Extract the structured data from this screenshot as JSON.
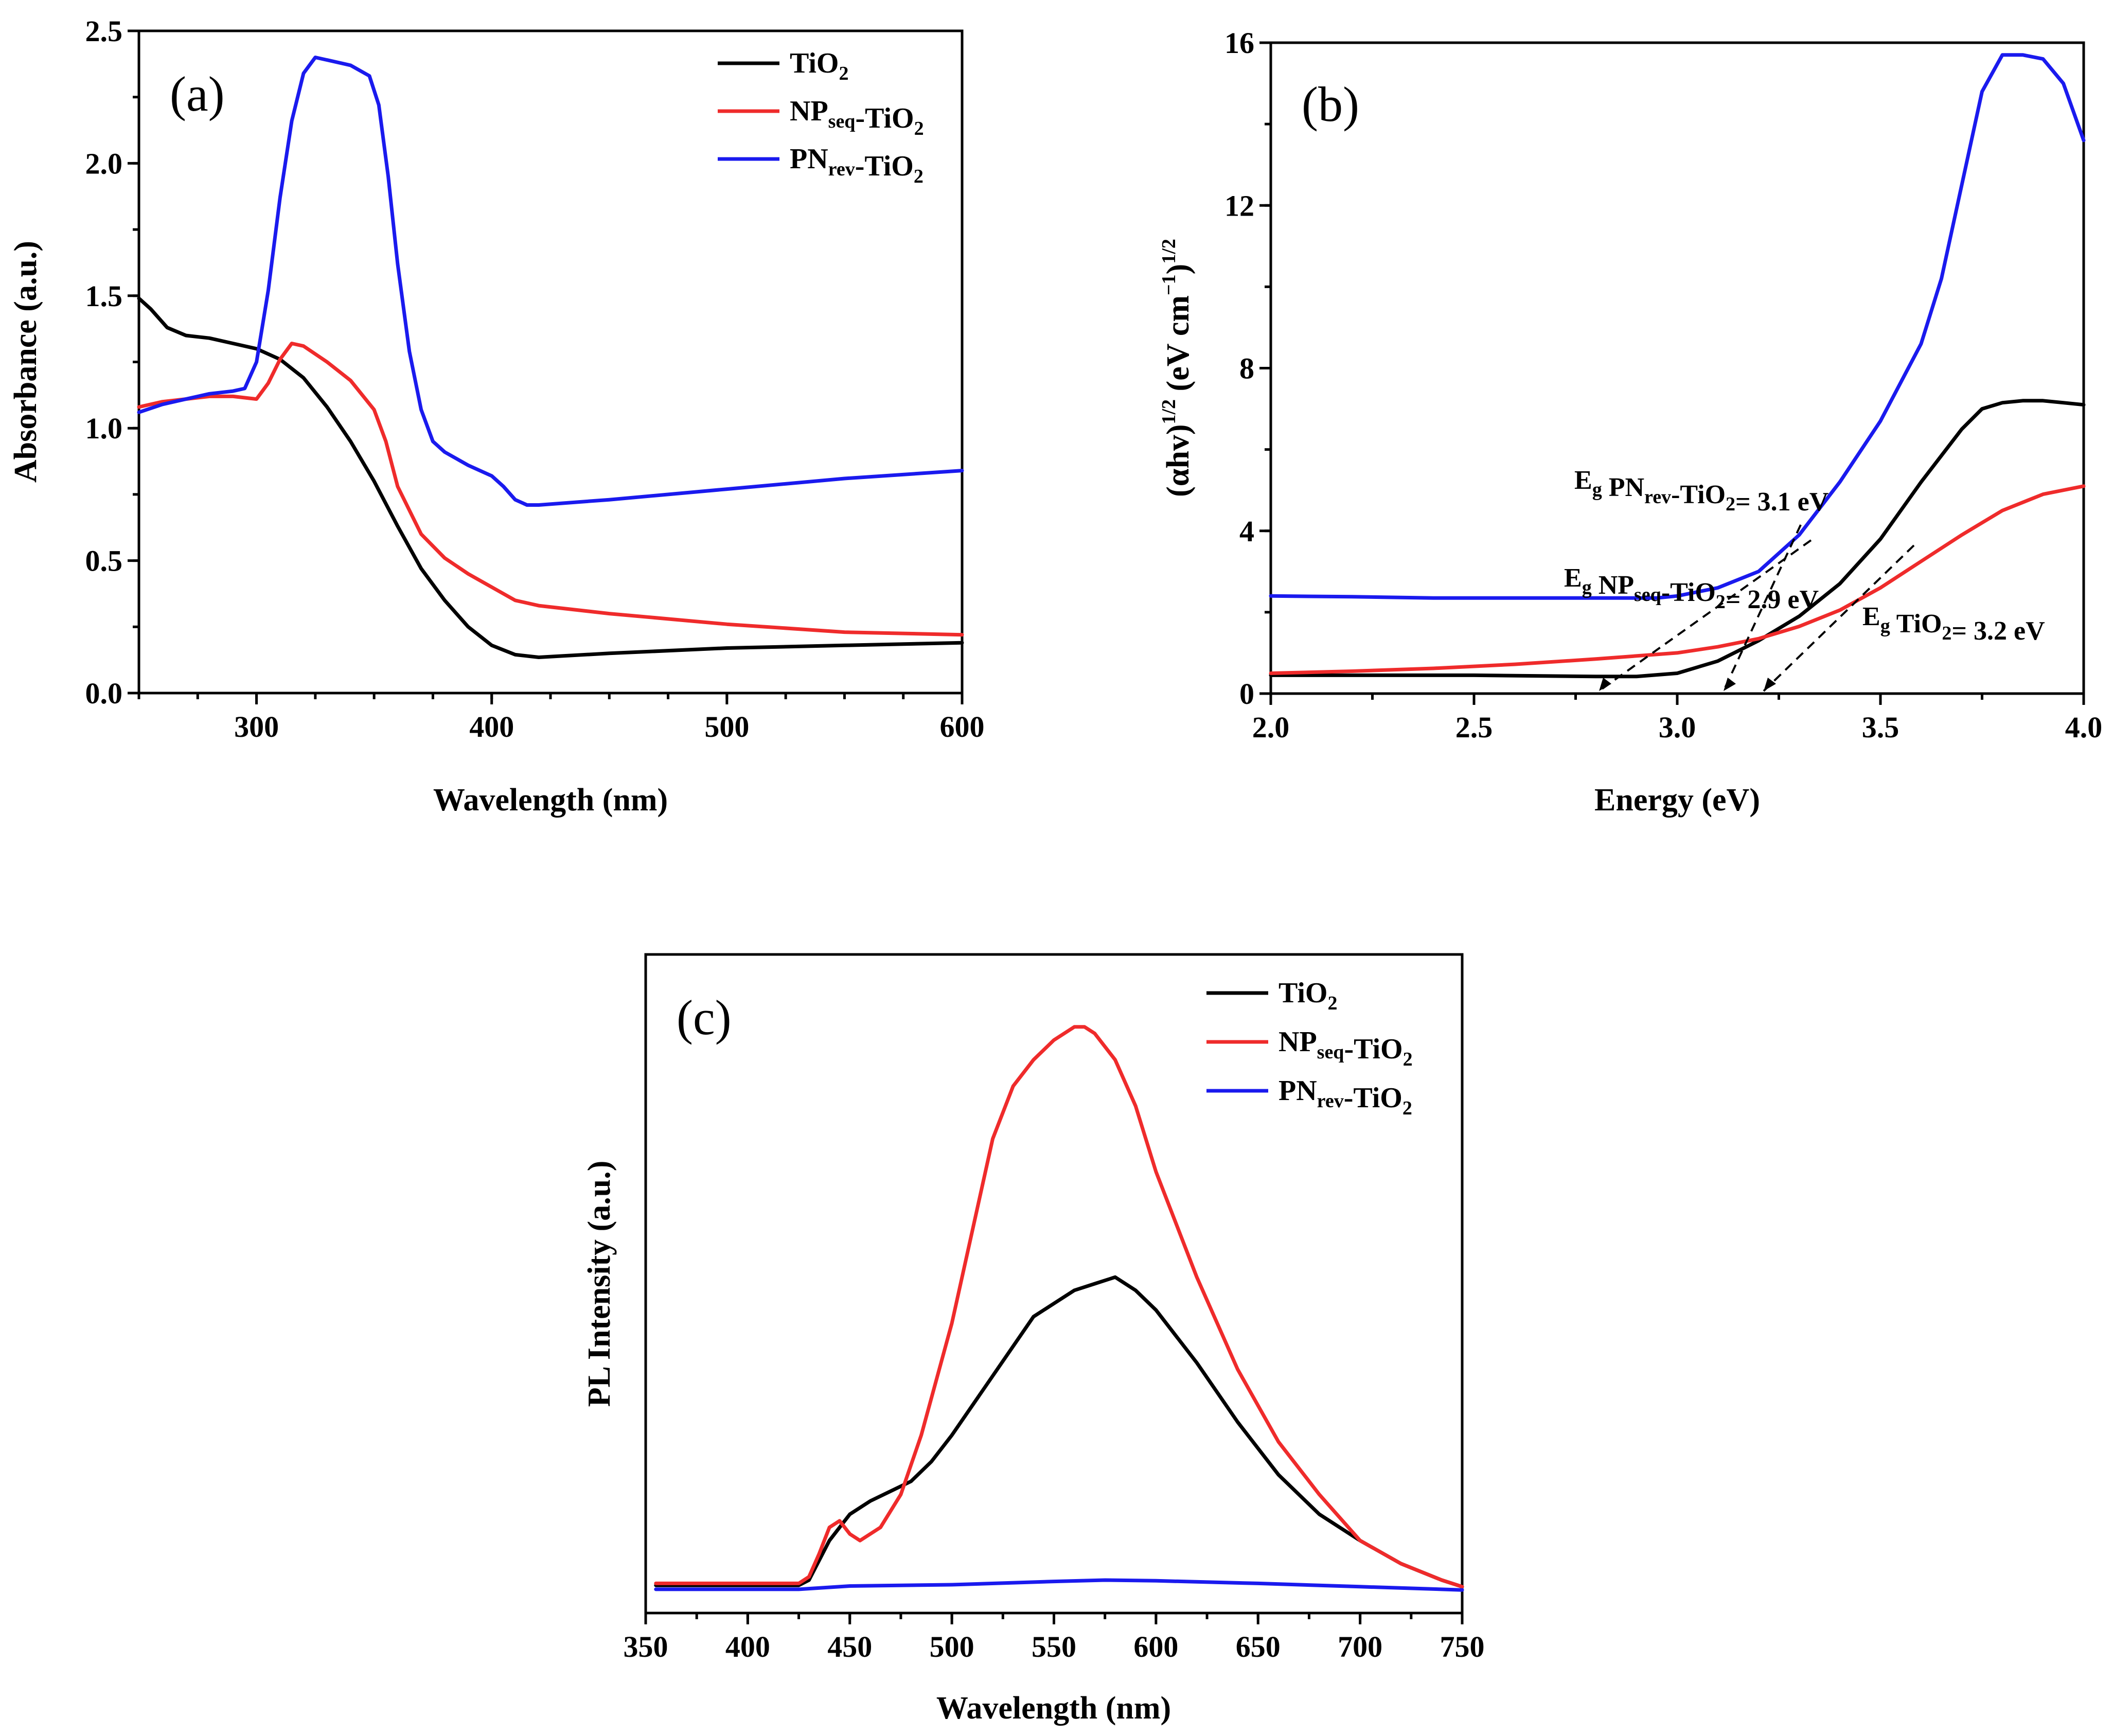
{
  "colors": {
    "black": "#000000",
    "red": "#ef2b2b",
    "blue": "#1a1aee"
  },
  "chart_data": [
    {
      "id": "a",
      "type": "line",
      "panel_label": "(a)",
      "xlabel": "Wavelength (nm)",
      "ylabel": "Absorbance (a.u.)",
      "xlim": [
        250,
        600
      ],
      "ylim": [
        0,
        2.5
      ],
      "xticks": [
        300,
        400,
        500,
        600
      ],
      "yticks": [
        0.0,
        0.5,
        1.0,
        1.5,
        2.0,
        2.5
      ],
      "xtick_labels": [
        "300",
        "400",
        "500",
        "600"
      ],
      "ytick_labels": [
        "0.0",
        "0.5",
        "1.0",
        "1.5",
        "2.0",
        "2.5"
      ],
      "legend_position": "top-right",
      "series": [
        {
          "name": "TiO2",
          "label_main": "TiO",
          "label_sub": "2",
          "label_tail": "",
          "color": "#000000",
          "x": [
            250,
            255,
            262,
            270,
            280,
            290,
            300,
            310,
            320,
            330,
            340,
            350,
            360,
            370,
            380,
            390,
            400,
            410,
            420,
            430,
            450,
            500,
            550,
            600
          ],
          "y": [
            1.49,
            1.45,
            1.38,
            1.35,
            1.34,
            1.32,
            1.3,
            1.26,
            1.19,
            1.08,
            0.95,
            0.8,
            0.63,
            0.47,
            0.35,
            0.25,
            0.18,
            0.145,
            0.135,
            0.14,
            0.15,
            0.17,
            0.18,
            0.19
          ]
        },
        {
          "name": "NPseq-TiO2",
          "label_main": "NP",
          "label_sub": "seq",
          "label_tail": "-TiO",
          "label_sub2": "2",
          "color": "#ef2b2b",
          "x": [
            250,
            260,
            270,
            280,
            290,
            300,
            305,
            310,
            315,
            320,
            330,
            340,
            350,
            355,
            360,
            370,
            380,
            390,
            400,
            410,
            420,
            450,
            500,
            550,
            600
          ],
          "y": [
            1.08,
            1.1,
            1.11,
            1.12,
            1.12,
            1.11,
            1.17,
            1.26,
            1.32,
            1.31,
            1.25,
            1.18,
            1.07,
            0.95,
            0.78,
            0.6,
            0.51,
            0.45,
            0.4,
            0.35,
            0.33,
            0.3,
            0.26,
            0.23,
            0.22
          ]
        },
        {
          "name": "PNrev-TiO2",
          "label_main": "PN",
          "label_sub": "rev",
          "label_tail": "-TiO",
          "label_sub2": "2",
          "color": "#1a1aee",
          "x": [
            250,
            260,
            270,
            280,
            290,
            295,
            300,
            305,
            310,
            315,
            320,
            325,
            330,
            340,
            348,
            352,
            356,
            360,
            365,
            370,
            375,
            380,
            390,
            400,
            405,
            410,
            415,
            420,
            450,
            500,
            550,
            600
          ],
          "y": [
            1.06,
            1.09,
            1.11,
            1.13,
            1.14,
            1.15,
            1.25,
            1.52,
            1.87,
            2.16,
            2.34,
            2.4,
            2.39,
            2.37,
            2.33,
            2.22,
            1.95,
            1.62,
            1.29,
            1.07,
            0.95,
            0.91,
            0.86,
            0.82,
            0.78,
            0.73,
            0.71,
            0.71,
            0.73,
            0.77,
            0.81,
            0.84
          ]
        }
      ]
    },
    {
      "id": "b",
      "type": "line",
      "panel_label": "(b)",
      "xlabel": "Energy (eV)",
      "ylabel": "(αhv)1/2 (eV cm−1)1/2",
      "xlim": [
        2.0,
        4.0
      ],
      "ylim": [
        0,
        16
      ],
      "xticks": [
        2.0,
        2.5,
        3.0,
        3.5,
        4.0
      ],
      "yticks": [
        0,
        4,
        8,
        12,
        16
      ],
      "xtick_labels": [
        "2.0",
        "2.5",
        "3.0",
        "3.5",
        "4.0"
      ],
      "ytick_labels": [
        "0",
        "4",
        "8",
        "12",
        "16"
      ],
      "annotations": [
        {
          "text": "Eg PNrev-TiO2= 3.1 eV",
          "p1": "E",
          "s1": "g",
          "p2": " PN",
          "s2": "rev",
          "p3": "-TiO",
          "s3": "2",
          "p4": "= 3.1 eV"
        },
        {
          "text": "Eg NPseq-TiO2= 2.9 eV",
          "p1": "E",
          "s1": "g",
          "p2": " NP",
          "s2": "seq",
          "p3": "-TiO",
          "s3": "2",
          "p4": "= 2.9 eV"
        },
        {
          "text": "Eg TiO2= 3.2 eV",
          "p1": "E",
          "s1": "g",
          "p2": " TiO",
          "s2": "2",
          "p4": "= 3.2 eV"
        }
      ],
      "series": [
        {
          "name": "TiO2",
          "color": "#000000",
          "x": [
            2.0,
            2.2,
            2.5,
            2.8,
            2.9,
            3.0,
            3.1,
            3.2,
            3.3,
            3.4,
            3.5,
            3.6,
            3.7,
            3.75,
            3.8,
            3.85,
            3.9,
            3.95,
            4.0
          ],
          "y": [
            0.45,
            0.45,
            0.45,
            0.42,
            0.42,
            0.5,
            0.8,
            1.3,
            1.9,
            2.7,
            3.8,
            5.2,
            6.5,
            7.0,
            7.15,
            7.2,
            7.2,
            7.15,
            7.1
          ]
        },
        {
          "name": "NPseq-TiO2",
          "color": "#ef2b2b",
          "x": [
            2.0,
            2.2,
            2.4,
            2.6,
            2.8,
            3.0,
            3.1,
            3.2,
            3.3,
            3.4,
            3.5,
            3.6,
            3.7,
            3.8,
            3.9,
            4.0
          ],
          "y": [
            0.5,
            0.55,
            0.62,
            0.72,
            0.85,
            1.0,
            1.15,
            1.35,
            1.65,
            2.05,
            2.6,
            3.25,
            3.9,
            4.5,
            4.9,
            5.1
          ]
        },
        {
          "name": "PNrev-TiO2",
          "color": "#1a1aee",
          "x": [
            2.0,
            2.2,
            2.4,
            2.6,
            2.8,
            2.95,
            3.0,
            3.1,
            3.2,
            3.3,
            3.4,
            3.5,
            3.6,
            3.65,
            3.7,
            3.75,
            3.8,
            3.85,
            3.9,
            3.95,
            4.0
          ],
          "y": [
            2.4,
            2.38,
            2.35,
            2.35,
            2.35,
            2.35,
            2.4,
            2.6,
            3.0,
            3.9,
            5.2,
            6.7,
            8.6,
            10.2,
            12.5,
            14.8,
            15.7,
            15.7,
            15.6,
            15.0,
            13.6
          ]
        }
      ]
    },
    {
      "id": "c",
      "type": "line",
      "panel_label": "(c)",
      "xlabel": "Wavelength (nm)",
      "ylabel": "PL Intensity (a.u.)",
      "xlim": [
        350,
        750
      ],
      "ylim": [
        0,
        100
      ],
      "xticks": [
        350,
        400,
        450,
        500,
        550,
        600,
        650,
        700,
        750
      ],
      "xtick_labels": [
        "350",
        "400",
        "450",
        "500",
        "550",
        "600",
        "650",
        "700",
        "750"
      ],
      "legend_position": "top-right",
      "series": [
        {
          "name": "TiO2",
          "label_main": "TiO",
          "label_sub": "2",
          "label_tail": "",
          "color": "#000000",
          "x": [
            355,
            380,
            400,
            425,
            430,
            435,
            440,
            445,
            450,
            460,
            470,
            480,
            490,
            500,
            520,
            540,
            560,
            570,
            580,
            590,
            600,
            620,
            640,
            660,
            680,
            700,
            720,
            740,
            750
          ],
          "y": [
            4.2,
            4.2,
            4.2,
            4.2,
            5,
            8,
            11,
            13,
            15,
            17,
            18.5,
            20,
            23,
            27,
            36,
            45,
            49,
            50,
            51,
            49,
            46,
            38,
            29,
            21,
            15,
            11,
            7.5,
            5,
            4
          ]
        },
        {
          "name": "NPseq-TiO2",
          "label_main": "NP",
          "label_sub": "seq",
          "label_tail": "-TiO",
          "label_sub2": "2",
          "color": "#ef2b2b",
          "x": [
            355,
            380,
            400,
            425,
            430,
            435,
            440,
            445,
            450,
            455,
            465,
            475,
            485,
            500,
            520,
            530,
            540,
            550,
            560,
            565,
            570,
            580,
            590,
            600,
            620,
            640,
            660,
            680,
            700,
            720,
            740,
            750
          ],
          "y": [
            4.5,
            4.5,
            4.5,
            4.5,
            5.5,
            9,
            13,
            14,
            12,
            11,
            13,
            18,
            27,
            44,
            72,
            80,
            84,
            87,
            89,
            89,
            88,
            84,
            77,
            67,
            51,
            37,
            26,
            18,
            11,
            7.5,
            5,
            4
          ]
        },
        {
          "name": "PNrev-TiO2",
          "label_main": "PN",
          "label_sub": "rev",
          "label_tail": "-TiO",
          "label_sub2": "2",
          "color": "#1a1aee",
          "x": [
            355,
            400,
            425,
            450,
            500,
            550,
            575,
            600,
            650,
            700,
            750
          ],
          "y": [
            3.6,
            3.6,
            3.6,
            4.1,
            4.3,
            4.8,
            5.0,
            4.9,
            4.5,
            4.0,
            3.5
          ]
        }
      ]
    }
  ]
}
